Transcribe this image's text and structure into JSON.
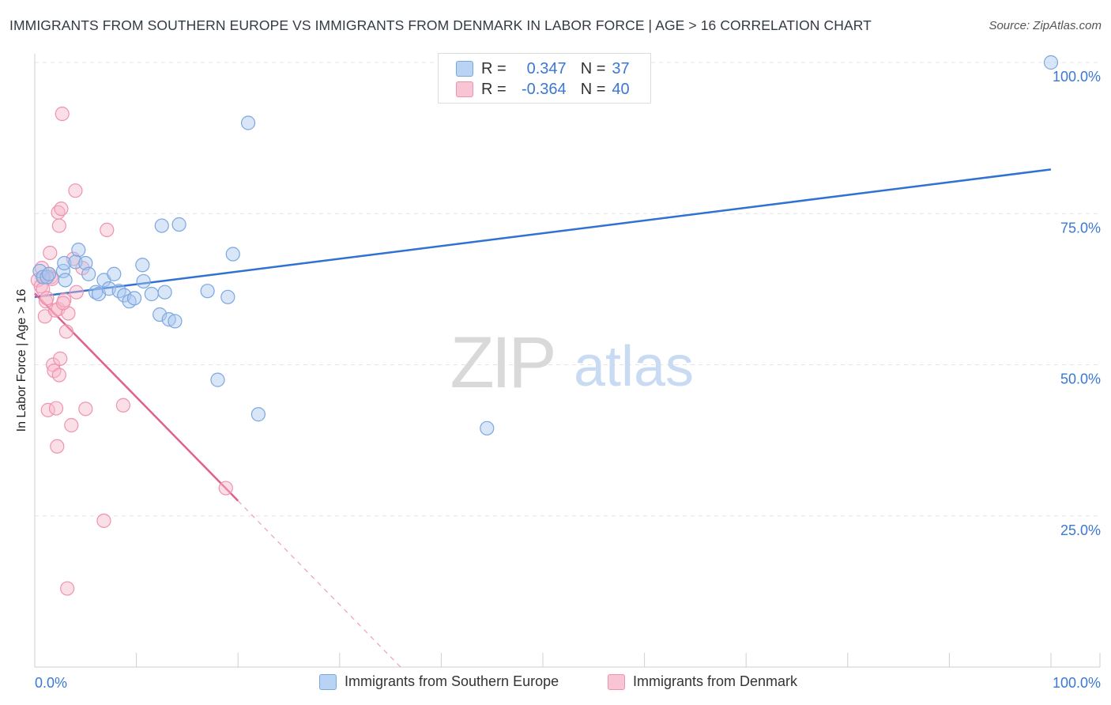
{
  "title": "IMMIGRANTS FROM SOUTHERN EUROPE VS IMMIGRANTS FROM DENMARK IN LABOR FORCE | AGE > 16 CORRELATION CHART",
  "source": "Source: ZipAtlas.com",
  "watermark": {
    "zip": "ZIP",
    "atlas": "atlas"
  },
  "legend": {
    "rows": [
      {
        "r_label": "R =",
        "r_value": "0.347",
        "n_label": "N =",
        "n_value": "37"
      },
      {
        "r_label": "R =",
        "r_value": "-0.364",
        "n_label": "N =",
        "n_value": "40"
      }
    ]
  },
  "bottom_legend": {
    "series1": "Immigrants from Southern Europe",
    "series2": "Immigrants from Denmark"
  },
  "colors": {
    "blue_fill": "#a9c8f0",
    "blue_stroke": "#7aa7e0",
    "blue_line": "#2f72d0",
    "pink_fill": "#f7b8ca",
    "pink_stroke": "#ee93ae",
    "pink_line": "#e0608e",
    "axis_text": "#3a78d4",
    "grid": "#e4e4e4"
  },
  "chart_data": {
    "type": "scatter",
    "title": "IMMIGRANTS FROM SOUTHERN EUROPE VS IMMIGRANTS FROM DENMARK IN LABOR FORCE | AGE > 16 CORRELATION CHART",
    "xlabel": "",
    "ylabel": "In Labor Force | Age > 16",
    "xlim": [
      0,
      100
    ],
    "ylim": [
      0,
      100
    ],
    "x_tick_labels": [
      {
        "value": 0,
        "label": "0.0%"
      },
      {
        "value": 100,
        "label": "100.0%"
      }
    ],
    "y_tick_labels": [
      {
        "value": 25,
        "label": "25.0%"
      },
      {
        "value": 50,
        "label": "50.0%"
      },
      {
        "value": 75,
        "label": "75.0%"
      },
      {
        "value": 100,
        "label": "100.0%"
      }
    ],
    "series": [
      {
        "name": "Immigrants from Southern Europe",
        "color": "blue",
        "R": 0.347,
        "N": 37,
        "points": [
          [
            0.5,
            65.5
          ],
          [
            0.8,
            64.5
          ],
          [
            1.2,
            64.5
          ],
          [
            1.4,
            65
          ],
          [
            2.8,
            65.5
          ],
          [
            2.9,
            66.8
          ],
          [
            3.0,
            64
          ],
          [
            4.3,
            69
          ],
          [
            4.0,
            67
          ],
          [
            5.0,
            66.8
          ],
          [
            5.3,
            65
          ],
          [
            6.0,
            62
          ],
          [
            6.3,
            61.7
          ],
          [
            6.8,
            64
          ],
          [
            7.3,
            62.6
          ],
          [
            7.8,
            65
          ],
          [
            8.3,
            62.2
          ],
          [
            8.8,
            61.5
          ],
          [
            9.3,
            60.5
          ],
          [
            9.8,
            61
          ],
          [
            10.6,
            66.5
          ],
          [
            10.7,
            63.8
          ],
          [
            11.5,
            61.7
          ],
          [
            12.3,
            58.3
          ],
          [
            12.5,
            73
          ],
          [
            12.8,
            62
          ],
          [
            13.2,
            57.5
          ],
          [
            13.8,
            57.2
          ],
          [
            14.2,
            73.2
          ],
          [
            17.0,
            62.2
          ],
          [
            18.0,
            47.5
          ],
          [
            19.0,
            61.2
          ],
          [
            19.5,
            68.3
          ],
          [
            21.0,
            90
          ],
          [
            22.0,
            41.8
          ],
          [
            44.5,
            39.5
          ],
          [
            100.0,
            100
          ]
        ],
        "trendline": {
          "x": [
            0,
            100
          ],
          "y": [
            61.2,
            82.3
          ]
        }
      },
      {
        "name": "Immigrants from Denmark",
        "color": "pink",
        "R": -0.364,
        "N": 40,
        "points": [
          [
            0.3,
            64
          ],
          [
            0.6,
            63
          ],
          [
            0.8,
            62.5
          ],
          [
            0.9,
            64.5
          ],
          [
            1.0,
            58
          ],
          [
            1.1,
            60.5
          ],
          [
            1.2,
            61
          ],
          [
            1.3,
            42.5
          ],
          [
            1.4,
            65
          ],
          [
            1.5,
            68.5
          ],
          [
            1.6,
            64.5
          ],
          [
            1.8,
            50
          ],
          [
            1.9,
            49
          ],
          [
            2.0,
            59
          ],
          [
            2.1,
            42.8
          ],
          [
            2.2,
            36.5
          ],
          [
            2.3,
            59.2
          ],
          [
            2.4,
            48.3
          ],
          [
            2.5,
            51
          ],
          [
            2.3,
            75.2
          ],
          [
            2.4,
            73
          ],
          [
            2.6,
            75.8
          ],
          [
            2.7,
            91.5
          ],
          [
            2.9,
            60.7
          ],
          [
            3.1,
            55.5
          ],
          [
            3.2,
            13
          ],
          [
            3.3,
            58.5
          ],
          [
            3.6,
            40
          ],
          [
            3.8,
            67.5
          ],
          [
            4.0,
            78.8
          ],
          [
            4.1,
            62
          ],
          [
            4.7,
            66
          ],
          [
            5.0,
            42.7
          ],
          [
            6.8,
            24.2
          ],
          [
            7.1,
            72.3
          ],
          [
            8.7,
            43.3
          ],
          [
            18.8,
            29.6
          ],
          [
            0.7,
            66
          ],
          [
            1.7,
            64.2
          ],
          [
            2.8,
            60.2
          ]
        ],
        "trendline": {
          "x": [
            0,
            20
          ],
          "y": [
            61.8,
            27.5
          ]
        },
        "trendline_dashed_extension": {
          "x": [
            20,
            36
          ],
          "y": [
            27.5,
            0
          ]
        }
      }
    ]
  }
}
